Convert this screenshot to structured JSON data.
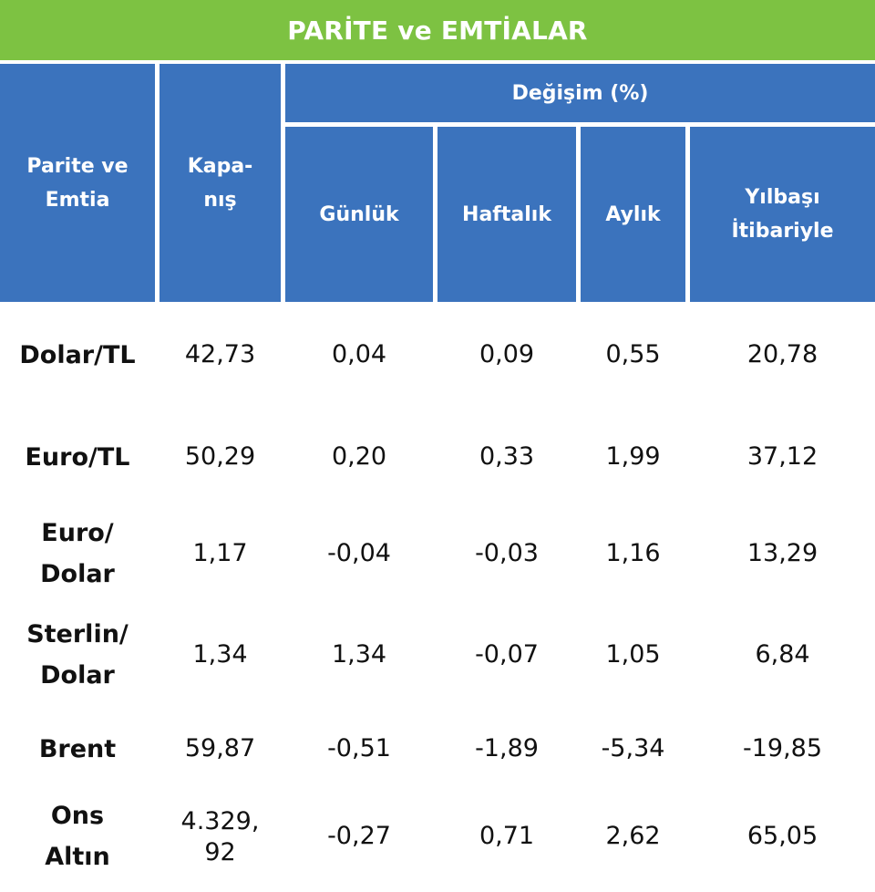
{
  "title": "PARİTE ve EMTİALAR",
  "header": {
    "col_name": "Parite ve\nEmtia",
    "col_close": "Kapa-\nnış",
    "change_group": "Değişim (%)",
    "col_daily": "Günlük",
    "col_weekly": "Haftalık",
    "col_monthly": "Aylık",
    "col_ytd": "Yılbaşı\nİtibariyle"
  },
  "rows": [
    {
      "name": "Dolar/TL",
      "close": "42,73",
      "daily": "0,04",
      "weekly": "0,09",
      "monthly": "0,55",
      "ytd": "20,78"
    },
    {
      "name": "Euro/TL",
      "close": "50,29",
      "daily": "0,20",
      "weekly": "0,33",
      "monthly": "1,99",
      "ytd": "37,12"
    },
    {
      "name": "Euro/\nDolar",
      "close": "1,17",
      "daily": "-0,04",
      "weekly": "-0,03",
      "monthly": "1,16",
      "ytd": "13,29"
    },
    {
      "name": "Sterlin/\nDolar",
      "close": "1,34",
      "daily": "1,34",
      "weekly": "-0,07",
      "monthly": "1,05",
      "ytd": "6,84"
    },
    {
      "name": "Brent",
      "close": "59,87",
      "daily": "-0,51",
      "weekly": "-1,89",
      "monthly": "-5,34",
      "ytd": "-19,85"
    },
    {
      "name": "Ons\nAltın",
      "close": "4.329,\n92",
      "daily": "-0,27",
      "weekly": "0,71",
      "monthly": "2,62",
      "ytd": "65,05"
    }
  ]
}
